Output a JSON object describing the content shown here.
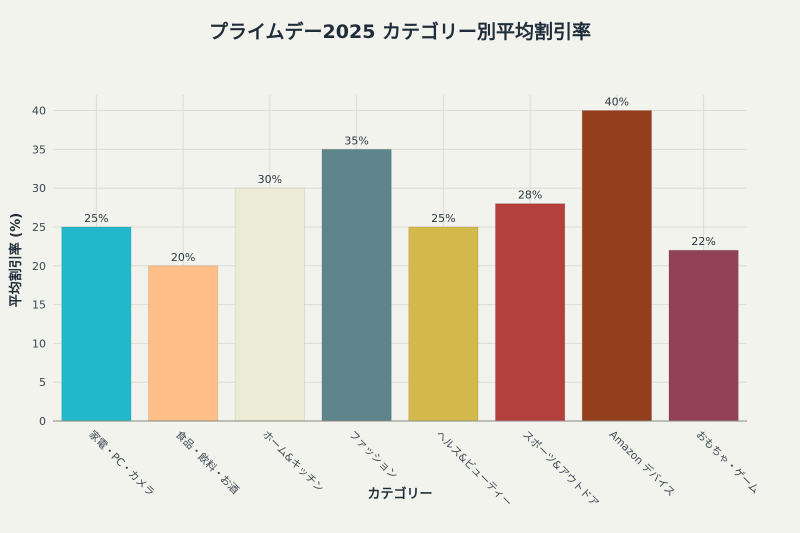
{
  "chart_data": {
    "type": "bar",
    "title": "プライムデー2025 カテゴリー別平均割引率",
    "xlabel": "カテゴリー",
    "ylabel": "平均割引率 (%)",
    "categories": [
      "家電・PC・カメラ",
      "食品・飲料・お酒",
      "ホーム&キッチン",
      "ファッション",
      "ヘルス&ビューティー",
      "スポーツ&アウトドア",
      "Amazon デバイス",
      "おもちゃ・ゲーム"
    ],
    "values": [
      25,
      20,
      30,
      35,
      25,
      28,
      40,
      22
    ],
    "data_labels": [
      "25%",
      "20%",
      "30%",
      "35%",
      "25%",
      "28%",
      "40%",
      "22%"
    ],
    "colors": [
      "#21b8cc",
      "#fdbf87",
      "#ebebd6",
      "#5e858b",
      "#d3b94b",
      "#b3403c",
      "#933f1e",
      "#924255"
    ],
    "ylim": [
      0,
      42
    ],
    "yticks": [
      0,
      5,
      10,
      15,
      20,
      25,
      30,
      35,
      40
    ],
    "grid": true,
    "legend": "none",
    "background": "#f3f3ee"
  }
}
